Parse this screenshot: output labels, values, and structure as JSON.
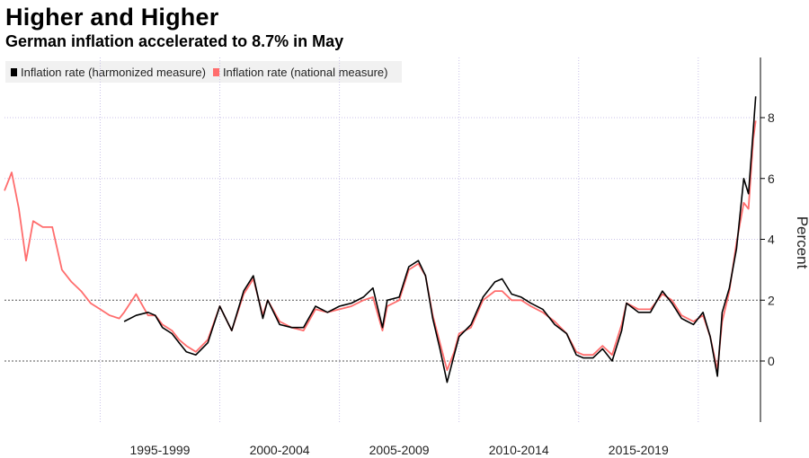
{
  "title": "Higher and Higher",
  "subtitle": "German inflation accelerated to 8.7% in May",
  "chart_data": {
    "type": "line",
    "title": "Higher and Higher",
    "subtitle": "German inflation accelerated to 8.7% in May",
    "ylabel": "Percent",
    "xlabel": "",
    "ylim": [
      -2,
      10
    ],
    "xlim": [
      1991.0,
      2022.6
    ],
    "y_ticks": [
      0,
      2,
      4,
      6,
      8
    ],
    "x_tick_labels": [
      "1995-1999",
      "2000-2004",
      "2005-2009",
      "2010-2014",
      "2015-2019"
    ],
    "reference_lines": [
      0,
      2
    ],
    "legend_position": "top-left",
    "grid": true,
    "series": [
      {
        "name": "Inflation rate (harmonized measure)",
        "color": "#000000",
        "x": [
          1996.0,
          1996.5,
          1997.0,
          1997.3,
          1997.6,
          1998.0,
          1998.3,
          1998.6,
          1999.0,
          1999.5,
          2000.0,
          2000.5,
          2001.0,
          2001.4,
          2001.8,
          2002.0,
          2002.5,
          2003.0,
          2003.5,
          2004.0,
          2004.5,
          2005.0,
          2005.5,
          2006.0,
          2006.4,
          2006.8,
          2007.0,
          2007.5,
          2007.9,
          2008.3,
          2008.6,
          2008.9,
          2009.2,
          2009.5,
          2009.8,
          2010.0,
          2010.5,
          2011.0,
          2011.5,
          2011.8,
          2012.2,
          2012.6,
          2013.0,
          2013.5,
          2014.0,
          2014.5,
          2014.9,
          2015.2,
          2015.6,
          2016.0,
          2016.4,
          2016.8,
          2017.0,
          2017.5,
          2018.0,
          2018.5,
          2018.9,
          2019.3,
          2019.8,
          2020.2,
          2020.5,
          2020.8,
          2021.0,
          2021.3,
          2021.6,
          2021.9,
          2022.1,
          2022.3,
          2022.4
        ],
        "values": [
          1.3,
          1.5,
          1.6,
          1.5,
          1.1,
          0.9,
          0.6,
          0.3,
          0.2,
          0.6,
          1.8,
          1.0,
          2.3,
          2.8,
          1.4,
          2.0,
          1.2,
          1.1,
          1.1,
          1.8,
          1.6,
          1.8,
          1.9,
          2.1,
          2.4,
          1.1,
          2.0,
          2.1,
          3.1,
          3.3,
          2.8,
          1.4,
          0.4,
          -0.7,
          0.2,
          0.8,
          1.2,
          2.1,
          2.6,
          2.7,
          2.2,
          2.1,
          1.9,
          1.7,
          1.2,
          0.9,
          0.2,
          0.1,
          0.1,
          0.4,
          0.0,
          1.0,
          1.9,
          1.6,
          1.6,
          2.3,
          1.9,
          1.4,
          1.2,
          1.6,
          0.8,
          -0.5,
          1.6,
          2.4,
          3.7,
          6.0,
          5.5,
          7.6,
          8.7
        ]
      },
      {
        "name": "Inflation rate (national measure)",
        "color": "#ff6d6d",
        "x": [
          1991.0,
          1991.3,
          1991.6,
          1991.9,
          1992.2,
          1992.6,
          1993.0,
          1993.4,
          1993.8,
          1994.2,
          1994.6,
          1995.0,
          1995.4,
          1995.8,
          1996.0,
          1996.5,
          1997.0,
          1997.3,
          1997.6,
          1998.0,
          1998.3,
          1998.6,
          1999.0,
          1999.5,
          2000.0,
          2000.5,
          2001.0,
          2001.4,
          2001.8,
          2002.0,
          2002.5,
          2003.0,
          2003.5,
          2004.0,
          2004.5,
          2005.0,
          2005.5,
          2006.0,
          2006.4,
          2006.8,
          2007.0,
          2007.5,
          2007.9,
          2008.3,
          2008.6,
          2008.9,
          2009.2,
          2009.5,
          2009.8,
          2010.0,
          2010.5,
          2011.0,
          2011.5,
          2011.8,
          2012.2,
          2012.6,
          2013.0,
          2013.5,
          2014.0,
          2014.5,
          2014.9,
          2015.2,
          2015.6,
          2016.0,
          2016.4,
          2016.8,
          2017.0,
          2017.5,
          2018.0,
          2018.5,
          2018.9,
          2019.3,
          2019.8,
          2020.2,
          2020.5,
          2020.8,
          2021.0,
          2021.3,
          2021.6,
          2021.9,
          2022.1,
          2022.3,
          2022.4
        ],
        "values": [
          5.6,
          6.2,
          5.0,
          3.3,
          4.6,
          4.4,
          4.4,
          3.0,
          2.6,
          2.3,
          1.9,
          1.7,
          1.5,
          1.4,
          1.6,
          2.2,
          1.5,
          1.5,
          1.2,
          1.0,
          0.7,
          0.5,
          0.3,
          0.7,
          1.8,
          1.0,
          2.2,
          2.7,
          1.5,
          2.0,
          1.3,
          1.1,
          1.0,
          1.7,
          1.6,
          1.7,
          1.8,
          2.0,
          2.1,
          1.0,
          1.8,
          2.0,
          3.0,
          3.2,
          2.8,
          1.5,
          0.6,
          -0.3,
          0.3,
          0.9,
          1.1,
          2.0,
          2.3,
          2.3,
          2.0,
          2.0,
          1.8,
          1.6,
          1.3,
          0.9,
          0.3,
          0.2,
          0.2,
          0.5,
          0.2,
          1.2,
          1.9,
          1.7,
          1.7,
          2.2,
          2.0,
          1.5,
          1.3,
          1.5,
          0.8,
          -0.3,
          1.3,
          2.3,
          3.9,
          5.2,
          5.0,
          7.3,
          7.9
        ]
      }
    ]
  }
}
